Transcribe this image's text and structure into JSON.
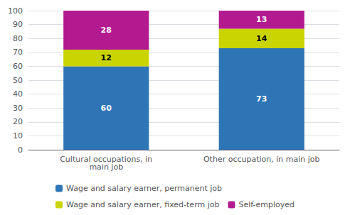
{
  "chart_data": {
    "type": "bar",
    "stacked": true,
    "categories": [
      "Cultural occupations, in\nmain job",
      "Other occupation, in main job"
    ],
    "series": [
      {
        "name": "Wage and salary earner, permanent job",
        "color": "#2E75B6",
        "values": [
          60,
          73
        ]
      },
      {
        "name": "Wage and salary earner, fixed-term job",
        "color": "#C9D400",
        "values": [
          12,
          14
        ]
      },
      {
        "name": "Self-employed",
        "color": "#B31A8F",
        "values": [
          28,
          13
        ]
      }
    ],
    "ylim": [
      0,
      100
    ],
    "yticks": [
      0,
      10,
      20,
      30,
      40,
      50,
      60,
      70,
      80,
      90,
      100
    ],
    "grid": true,
    "legend": "bottom",
    "data_labels": true
  }
}
